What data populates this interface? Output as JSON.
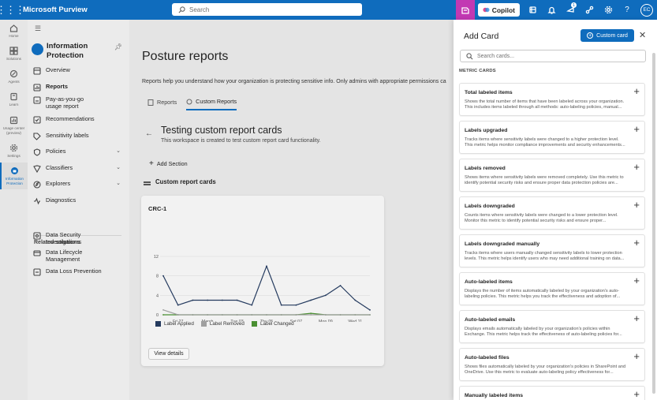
{
  "app": {
    "name": "Microsoft Purview",
    "search_placeholder": "Search",
    "copilot_label": "Copilot",
    "notification_count": "1",
    "avatar_initials": "EC"
  },
  "rail": [
    {
      "label": "Home",
      "icon": "home-icon"
    },
    {
      "label": "Solutions",
      "icon": "grid-icon"
    },
    {
      "label": "Agents",
      "icon": "agents-icon"
    },
    {
      "label": "Learn",
      "icon": "book-icon"
    },
    {
      "label": "Usage center (preview)",
      "icon": "usage-icon"
    },
    {
      "label": "Settings",
      "icon": "gear-icon"
    },
    {
      "label": "Information Protection",
      "icon": "info-protection-icon"
    }
  ],
  "nav": {
    "solution_title": "Information Protection",
    "items": [
      {
        "label": "Overview",
        "icon": "overview-icon"
      },
      {
        "label": "Reports",
        "icon": "reports-icon"
      },
      {
        "label": "Pay-as-you-go usage report",
        "icon": "payg-icon"
      },
      {
        "label": "Recommendations",
        "icon": "recommendations-icon"
      },
      {
        "label": "Sensitivity labels",
        "icon": "tag-icon"
      },
      {
        "label": "Policies",
        "icon": "policies-icon"
      },
      {
        "label": "Classifiers",
        "icon": "classifiers-icon"
      },
      {
        "label": "Explorers",
        "icon": "explorers-icon"
      },
      {
        "label": "Diagnostics",
        "icon": "diagnostics-icon"
      }
    ],
    "related_heading": "Related solutions",
    "related": [
      {
        "label": "Data Security Investigations"
      },
      {
        "label": "Data Lifecycle Management"
      },
      {
        "label": "Data Loss Prevention"
      }
    ]
  },
  "main": {
    "title": "Posture reports",
    "description": "Reports help you understand how your organization is protecting sensitive info. Only admins with appropriate permissions ca",
    "tabs": [
      {
        "label": "Reports"
      },
      {
        "label": "Custom Reports"
      }
    ],
    "workspace_title": "Testing custom report cards",
    "workspace_desc": "This workspace is created to test custom report card functionality.",
    "add_section": "Add Section",
    "section_title": "Custom report cards",
    "card_title": "CRC-1",
    "view_details": "View details"
  },
  "chart_data": {
    "type": "line",
    "title": "CRC-1",
    "x": [
      "",
      "Fri 27",
      "",
      "March",
      "",
      "Tue 03",
      "",
      "Thu 05",
      "",
      "Sat 07",
      "",
      "Mon 09",
      "",
      "Wed 11",
      ""
    ],
    "tick_labels": [
      "Fri 27",
      "March",
      "Tue 03",
      "Thu 05",
      "Sat 07",
      "Mon 09",
      "Wed 11"
    ],
    "yticks": [
      0,
      4,
      8,
      12
    ],
    "ylim": [
      0,
      12
    ],
    "series": [
      {
        "name": "Label Applied",
        "color": "#243a5e",
        "values": [
          8,
          2,
          3,
          3,
          3,
          3,
          2,
          10,
          2,
          2,
          3,
          4,
          6,
          3,
          1
        ]
      },
      {
        "name": "Label Removed",
        "color": "#a0a0a0",
        "values": [
          1,
          0,
          0,
          0,
          0,
          0,
          0,
          0,
          0,
          0,
          0,
          0,
          0,
          0,
          0
        ]
      },
      {
        "name": "Label Changed",
        "color": "#4a8f32",
        "values": [
          0,
          0,
          0,
          0,
          0,
          0,
          0,
          0,
          0,
          0,
          0.3,
          0,
          0,
          0,
          0
        ]
      }
    ]
  },
  "panel": {
    "title": "Add Card",
    "custom_card_button": "Custom card",
    "search_placeholder": "Search cards...",
    "section_heading": "METRIC CARDS",
    "cards": [
      {
        "title": "Total labeled items",
        "desc": "Shows the total number of items that have been labeled across your organization. This includes items labeled through all methods: auto-labeling policies, manual..."
      },
      {
        "title": "Labels upgraded",
        "desc": "Tracks items where sensitivity labels were changed to a higher protection level. This metric helps monitor compliance improvements and security enhancements..."
      },
      {
        "title": "Labels removed",
        "desc": "Shows items where sensitivity labels were removed completely. Use this metric to identify potential security risks and ensure proper data protection policies are..."
      },
      {
        "title": "Labels downgraded",
        "desc": "Counts items where sensitivity labels were changed to a lower protection level. Monitor this metric to identify potential security risks and ensure proper..."
      },
      {
        "title": "Labels downgraded manually",
        "desc": "Tracks items where users manually changed sensitivity labels to lower protection levels. This metric helps identify users who may need additional training on data..."
      },
      {
        "title": "Auto-labeled items",
        "desc": "Displays the number of items automatically labeled by your organization's auto-labeling policies. This metric helps you track the effectiveness and adoption of..."
      },
      {
        "title": "Auto-labeled emails",
        "desc": "Displays emails automatically labeled by your organization's policies within Exchange. This metric helps track the effectiveness of auto-labeling policies for..."
      },
      {
        "title": "Auto-labeled files",
        "desc": "Shows files automatically labeled by your organization's policies in SharePoint and OneDrive. Use this metric to evaluate auto-labeling policy effectiveness for..."
      },
      {
        "title": "Manually labeled items",
        "desc": ""
      }
    ]
  }
}
